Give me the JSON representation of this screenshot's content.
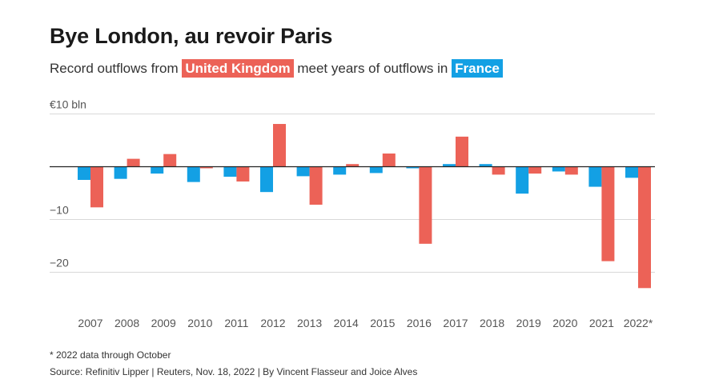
{
  "header": {
    "title": "Bye London, au revoir Paris",
    "subtitle_pre": "Record outflows from",
    "subtitle_uk": "United Kingdom",
    "subtitle_mid": "meet years of outflows in",
    "subtitle_fr": "France"
  },
  "footer": {
    "footnote": "* 2022 data through October",
    "source": "Source: Refinitiv Lipper | Reuters, Nov. 18, 2022 | By Vincent Flasseur and Joice Alves"
  },
  "colors": {
    "uk": "#ec6257",
    "france": "#13a0e4",
    "grid": "#d9d9d9",
    "zero": "#222222"
  },
  "chart_data": {
    "type": "bar",
    "title": "Bye London, au revoir Paris",
    "subtitle": "Record outflows from United Kingdom meet years of outflows in France",
    "ylabel": "",
    "ylim": [
      -23,
      10
    ],
    "yticks": [
      {
        "value": 10,
        "label": "€10 bln"
      },
      {
        "value": 0,
        "label": ""
      },
      {
        "value": -10,
        "label": "−10"
      },
      {
        "value": -20,
        "label": "−20"
      }
    ],
    "categories": [
      "2007",
      "2008",
      "2009",
      "2010",
      "2011",
      "2012",
      "2013",
      "2014",
      "2015",
      "2016",
      "2017",
      "2018",
      "2019",
      "2020",
      "2021",
      "2022*"
    ],
    "series": [
      {
        "name": "France",
        "color": "#13a0e4",
        "values": [
          -2.5,
          -2.3,
          -1.3,
          -2.9,
          -1.9,
          -4.8,
          -1.8,
          -1.5,
          -1.2,
          -0.3,
          0.5,
          0.5,
          -5.1,
          -0.9,
          -3.8,
          -2.1
        ]
      },
      {
        "name": "United Kingdom",
        "color": "#ec6257",
        "values": [
          -7.7,
          1.5,
          2.4,
          -0.3,
          -2.8,
          8.1,
          -7.2,
          0.5,
          2.5,
          -14.6,
          5.7,
          -1.5,
          -1.3,
          -1.5,
          -17.9,
          -23.0
        ]
      }
    ],
    "grid": true,
    "legend": "in subtitle"
  }
}
